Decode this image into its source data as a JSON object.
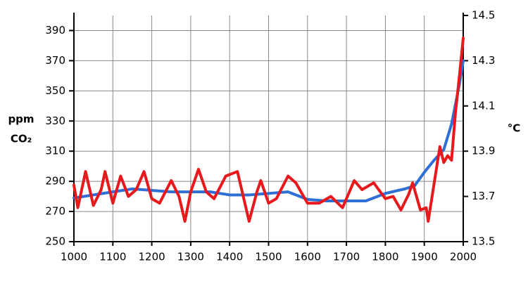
{
  "chart_data": {
    "type": "line",
    "ylabel": [
      "ppm",
      "CO₂"
    ],
    "y2label": "°C",
    "xlim": [
      1000,
      2000
    ],
    "xticks": [
      1000,
      1100,
      1200,
      1300,
      1400,
      1500,
      1600,
      1700,
      1800,
      1900,
      2000
    ],
    "ylim": [
      250,
      400
    ],
    "yticks": [
      250,
      270,
      290,
      310,
      330,
      350,
      370,
      390
    ],
    "y2lim": [
      13.5,
      14.5
    ],
    "y2ticks": [
      13.5,
      13.7,
      13.9,
      14.1,
      14.3,
      14.5
    ],
    "grid": true,
    "series": [
      {
        "color": "#2e6fd6",
        "axis": "y",
        "x": [
          1000,
          1050,
          1100,
          1150,
          1200,
          1250,
          1300,
          1350,
          1400,
          1450,
          1500,
          1550,
          1600,
          1650,
          1700,
          1750,
          1800,
          1850,
          1875,
          1900,
          1925,
          1950,
          1970,
          1990,
          2000
        ],
        "values": [
          279,
          281,
          283,
          285,
          284,
          283,
          283,
          283,
          281,
          281,
          282,
          283,
          278,
          277,
          277,
          277,
          282,
          285,
          287,
          296,
          304,
          311,
          328,
          354,
          370
        ]
      },
      {
        "color": "#e8191c",
        "axis": "y2",
        "x": [
          1000,
          1010,
          1030,
          1050,
          1070,
          1080,
          1100,
          1120,
          1140,
          1160,
          1180,
          1200,
          1220,
          1250,
          1270,
          1285,
          1300,
          1320,
          1340,
          1360,
          1390,
          1420,
          1450,
          1470,
          1480,
          1500,
          1520,
          1550,
          1570,
          1600,
          1630,
          1660,
          1690,
          1720,
          1740,
          1770,
          1800,
          1820,
          1840,
          1860,
          1870,
          1890,
          1905,
          1910,
          1930,
          1940,
          1950,
          1960,
          1970,
          1980,
          1990,
          2000
        ],
        "values": [
          13.75,
          13.65,
          13.81,
          13.66,
          13.73,
          13.81,
          13.67,
          13.79,
          13.7,
          13.73,
          13.81,
          13.69,
          13.67,
          13.77,
          13.7,
          13.59,
          13.72,
          13.82,
          13.72,
          13.69,
          13.79,
          13.81,
          13.59,
          13.72,
          13.77,
          13.67,
          13.69,
          13.79,
          13.76,
          13.67,
          13.67,
          13.7,
          13.65,
          13.77,
          13.73,
          13.76,
          13.69,
          13.7,
          13.64,
          13.71,
          13.76,
          13.64,
          13.65,
          13.59,
          13.81,
          13.92,
          13.85,
          13.88,
          13.86,
          14.07,
          14.23,
          14.4
        ]
      }
    ]
  }
}
